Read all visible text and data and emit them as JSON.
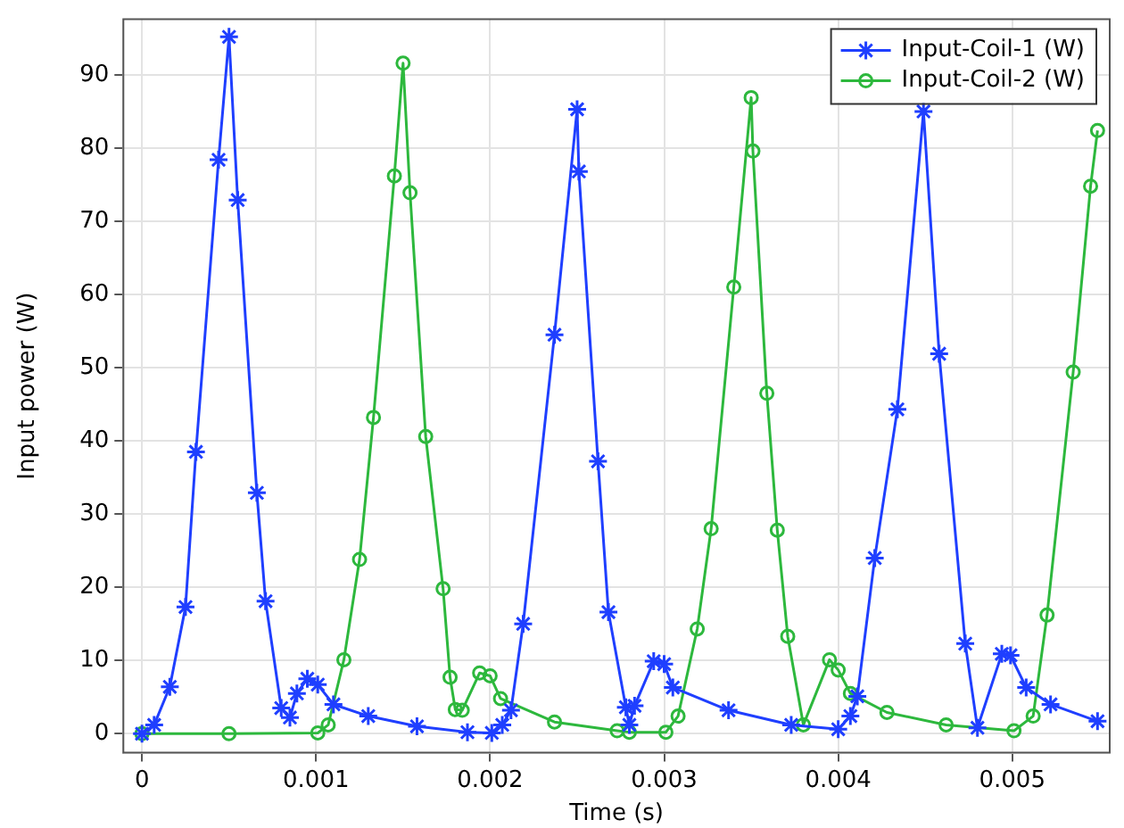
{
  "chart_data": {
    "type": "line",
    "xlabel": "Time (s)",
    "ylabel": "Input power (W)",
    "xlim": [
      -0.000107,
      0.00556
    ],
    "ylim": [
      -2.6,
      97.6
    ],
    "xticks": [
      0,
      0.001,
      0.002,
      0.003,
      0.004,
      0.005
    ],
    "yticks": [
      0,
      10,
      20,
      30,
      40,
      50,
      60,
      70,
      80,
      90
    ],
    "grid": true,
    "legend": "top right",
    "line_style": "solid",
    "series": [
      {
        "name": "Input-Coil-1 (W)",
        "color": "#1f3fff",
        "marker": "cross",
        "x": [
          0,
          7e-05,
          0.00016,
          0.00025,
          0.00031,
          0.00044,
          0.0005,
          0.00055,
          0.00066,
          0.00071,
          0.0008,
          0.00085,
          0.00089,
          0.00095,
          0.00101,
          0.0011,
          0.0013,
          0.00158,
          0.00187,
          0.00201,
          0.00207,
          0.00212,
          0.00219,
          0.00237,
          0.0025,
          0.00251,
          0.00262,
          0.00268,
          0.00278,
          0.0028,
          0.00283,
          0.00294,
          0.003,
          0.00305,
          0.00337,
          0.00373,
          0.004,
          0.00407,
          0.00411,
          0.00421,
          0.00434,
          0.00449,
          0.00458,
          0.00473,
          0.0048,
          0.00494,
          0.00499,
          0.00508,
          0.00522,
          0.00549
        ],
        "values": [
          0,
          1.2,
          6.4,
          17.3,
          38.5,
          78.4,
          95.2,
          72.9,
          32.9,
          18.1,
          3.5,
          2.2,
          5.5,
          7.5,
          6.7,
          4,
          2.4,
          1,
          0.2,
          0.1,
          1.2,
          3.2,
          15,
          54.5,
          85.3,
          76.8,
          37.2,
          16.6,
          3.6,
          1.2,
          3.8,
          9.9,
          9.5,
          6.3,
          3.2,
          1.2,
          0.6,
          2.4,
          5.1,
          24,
          44.3,
          85,
          51.9,
          12.3,
          0.8,
          10.9,
          10.7,
          6.3,
          4,
          1.7
        ]
      },
      {
        "name": "Input-Coil-2 (W)",
        "color": "#2db83d",
        "marker": "circle",
        "x": [
          0,
          0.0005,
          0.00101,
          0.00107,
          0.00116,
          0.00125,
          0.00133,
          0.00145,
          0.0015,
          0.00154,
          0.00163,
          0.00173,
          0.00177,
          0.0018,
          0.00184,
          0.00194,
          0.002,
          0.00206,
          0.00237,
          0.00273,
          0.0028,
          0.00301,
          0.00308,
          0.00319,
          0.00327,
          0.0034,
          0.0035,
          0.00351,
          0.00359,
          0.00365,
          0.00371,
          0.0038,
          0.00395,
          0.004,
          0.00407,
          0.00428,
          0.00462,
          0.00501,
          0.00512,
          0.0052,
          0.00535,
          0.00545,
          0.00549
        ],
        "values": [
          0,
          0,
          0.1,
          1.2,
          10.1,
          23.8,
          43.2,
          76.2,
          91.6,
          73.9,
          40.6,
          19.8,
          7.7,
          3.3,
          3.2,
          8.3,
          7.9,
          4.8,
          1.6,
          0.4,
          0.2,
          0.2,
          2.4,
          14.3,
          28,
          61,
          86.9,
          79.6,
          46.5,
          27.8,
          13.3,
          1.2,
          10.1,
          8.7,
          5.5,
          2.9,
          1.2,
          0.4,
          2.4,
          16.2,
          49.4,
          74.8,
          82.4
        ]
      }
    ]
  }
}
